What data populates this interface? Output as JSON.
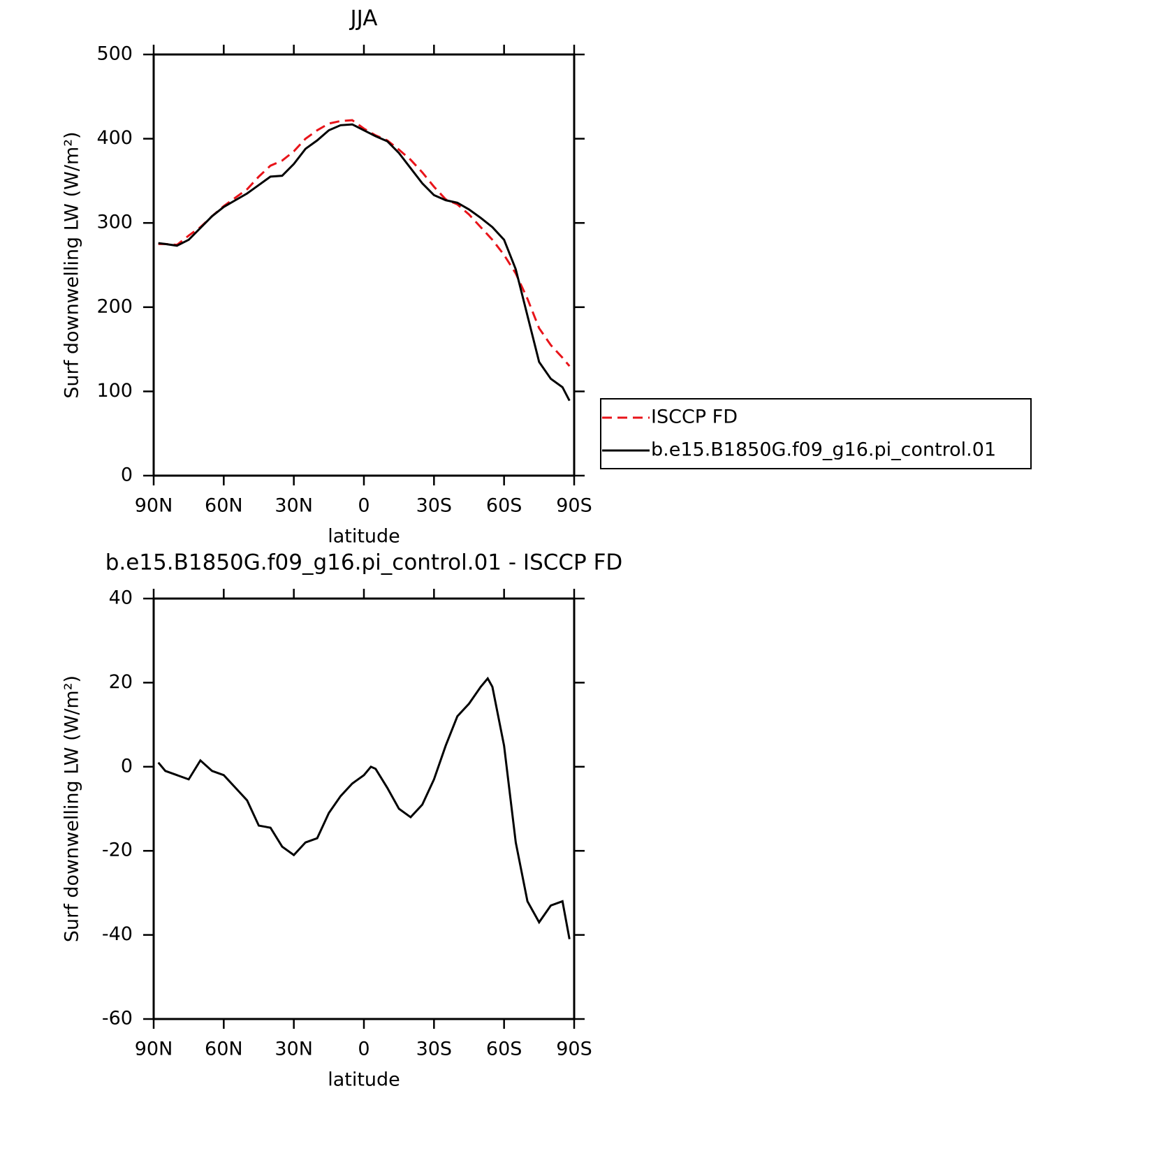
{
  "chart_data": [
    {
      "type": "line",
      "title": "JJA",
      "xlabel": "latitude",
      "ylabel": "Surf downwelling LW (W/m²)",
      "x": [
        88,
        85,
        80,
        75,
        70,
        65,
        60,
        55,
        50,
        45,
        40,
        35,
        30,
        25,
        20,
        15,
        10,
        5,
        0,
        -5,
        -10,
        -15,
        -20,
        -25,
        -30,
        -35,
        -40,
        -45,
        -50,
        -55,
        -60,
        -65,
        -70,
        -75,
        -80,
        -85,
        -88
      ],
      "series": [
        {
          "name": "ISCCP FD",
          "color": "#e8141a",
          "line_style": "dashed",
          "values": [
            275,
            275,
            274,
            285,
            295,
            308,
            320,
            330,
            340,
            355,
            368,
            374,
            385,
            400,
            410,
            418,
            421,
            422,
            412,
            404,
            398,
            387,
            375,
            360,
            343,
            328,
            322,
            310,
            295,
            280,
            262,
            240,
            210,
            175,
            155,
            140,
            130
          ]
        },
        {
          "name": "b.e15.B1850G.f09_g16.pi_control.01",
          "color": "#000000",
          "line_style": "solid",
          "values": [
            276,
            275,
            273,
            280,
            294,
            308,
            319,
            327,
            335,
            345,
            355,
            356,
            370,
            388,
            398,
            410,
            416,
            417,
            410,
            403,
            397,
            383,
            365,
            347,
            333,
            327,
            324,
            316,
            306,
            295,
            280,
            245,
            190,
            135,
            115,
            105,
            89
          ]
        }
      ],
      "xlim": [
        90,
        -90
      ],
      "xticks": [
        {
          "value": 90,
          "label": "90N"
        },
        {
          "value": 60,
          "label": "60N"
        },
        {
          "value": 30,
          "label": "30N"
        },
        0,
        {
          "value": -30,
          "label": "30S"
        },
        {
          "value": -60,
          "label": "60S"
        },
        {
          "value": -90,
          "label": "90S"
        }
      ],
      "ylim": [
        0,
        500
      ],
      "yticks": [
        0,
        100,
        200,
        300,
        400,
        500
      ],
      "legend": "right"
    },
    {
      "type": "line",
      "title": "b.e15.B1850G.f09_g16.pi_control.01 - ISCCP FD",
      "xlabel": "latitude",
      "ylabel": "Surf downwelling LW (W/m²)",
      "x": [
        88,
        85,
        80,
        75,
        70,
        65,
        60,
        55,
        50,
        45,
        40,
        35,
        30,
        25,
        20,
        15,
        10,
        5,
        0,
        -3,
        -5,
        -10,
        -15,
        -20,
        -25,
        -30,
        -35,
        -40,
        -45,
        -50,
        -53,
        -55,
        -60,
        -65,
        -70,
        -75,
        -80,
        -85,
        -88
      ],
      "values": [
        1,
        -1,
        -2,
        -3,
        1.5,
        -1,
        -2,
        -5,
        -8,
        -14,
        -14.5,
        -19,
        -21,
        -18,
        -17,
        -11,
        -7,
        -4,
        -2,
        0,
        -0.5,
        -5,
        -10,
        -12,
        -9,
        -3,
        5,
        12,
        15,
        19,
        21,
        19,
        5,
        -18,
        -32,
        -37,
        -33,
        -32,
        -41
      ],
      "color": "#000000",
      "xlim": [
        90,
        -90
      ],
      "xticks": [
        {
          "value": 90,
          "label": "90N"
        },
        {
          "value": 60,
          "label": "60N"
        },
        {
          "value": 30,
          "label": "30N"
        },
        0,
        {
          "value": -30,
          "label": "30S"
        },
        {
          "value": -60,
          "label": "60S"
        },
        {
          "value": -90,
          "label": "90S"
        }
      ],
      "ylim": [
        -60,
        40
      ],
      "yticks": [
        -60,
        -40,
        -20,
        0,
        20,
        40
      ]
    }
  ]
}
